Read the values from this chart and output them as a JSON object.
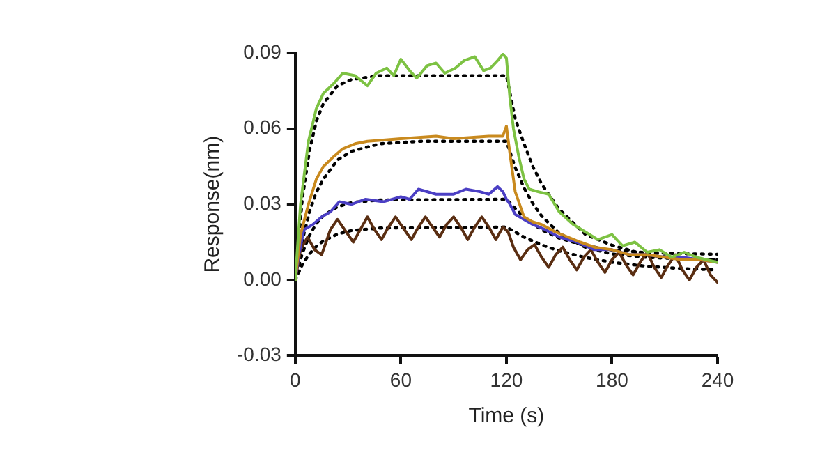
{
  "chart_data": {
    "type": "line",
    "xlabel": "Time (s)",
    "ylabel": "Response(nm)",
    "xlim": [
      0,
      240
    ],
    "xticks": [
      0,
      60,
      120,
      180,
      240
    ],
    "ylim": [
      -0.03,
      0.09
    ],
    "yticks": [
      -0.03,
      {
        "value": 0,
        "label": "0.00"
      },
      0.03,
      0.06,
      0.09
    ],
    "marker": "none",
    "series": [
      {
        "color": "#7dc243",
        "line_style": "solid",
        "x": [
          0,
          3,
          7.5,
          12,
          16,
          22,
          27,
          34,
          41,
          46,
          52,
          56,
          60,
          65,
          69,
          75,
          80,
          85,
          91,
          96,
          102,
          107,
          111,
          115,
          118,
          120,
          122,
          124,
          127,
          130,
          133,
          138,
          144,
          150,
          158,
          165,
          172,
          180,
          186,
          193,
          200,
          207,
          214,
          221,
          228,
          234,
          240
        ],
        "values": [
          0,
          0.03,
          0.055,
          0.068,
          0.074,
          0.078,
          0.082,
          0.081,
          0.077,
          0.082,
          0.084,
          0.081,
          0.0875,
          0.083,
          0.08,
          0.085,
          0.086,
          0.082,
          0.084,
          0.087,
          0.0885,
          0.083,
          0.084,
          0.087,
          0.0895,
          0.088,
          0.072,
          0.06,
          0.049,
          0.04,
          0.036,
          0.035,
          0.034,
          0.027,
          0.022,
          0.019,
          0.016,
          0.018,
          0.0135,
          0.015,
          0.011,
          0.012,
          0.009,
          0.011,
          0.009,
          0.008,
          0.007
        ]
      },
      {
        "color": "#c98a1e",
        "line_style": "solid",
        "x": [
          0,
          3,
          7.5,
          12,
          16,
          22,
          27,
          34,
          41,
          50,
          60,
          70,
          80,
          90,
          100,
          110,
          118,
          120,
          122,
          125,
          130,
          135,
          140,
          148,
          155,
          162,
          170,
          180,
          190,
          200,
          210,
          220,
          230,
          240
        ],
        "values": [
          0,
          0.018,
          0.03,
          0.04,
          0.045,
          0.049,
          0.052,
          0.054,
          0.055,
          0.0555,
          0.056,
          0.0565,
          0.057,
          0.056,
          0.0565,
          0.057,
          0.057,
          0.061,
          0.05,
          0.035,
          0.025,
          0.023,
          0.022,
          0.019,
          0.017,
          0.015,
          0.013,
          0.012,
          0.01,
          0.01,
          0.009,
          0.008,
          0.008,
          0.007
        ]
      },
      {
        "color": "#4b3fc4",
        "line_style": "solid",
        "x": [
          0,
          2,
          5,
          10,
          15,
          20,
          25,
          32,
          40,
          50,
          60,
          65,
          70,
          80,
          90,
          97,
          105,
          110,
          115,
          118,
          120,
          122,
          125,
          130,
          135,
          142,
          150,
          160,
          170,
          180,
          190,
          200,
          210,
          220,
          230,
          240
        ],
        "values": [
          0,
          0.01,
          0.02,
          0.022,
          0.025,
          0.027,
          0.031,
          0.03,
          0.032,
          0.031,
          0.033,
          0.032,
          0.036,
          0.034,
          0.034,
          0.036,
          0.035,
          0.034,
          0.037,
          0.035,
          0.032,
          0.03,
          0.026,
          0.024,
          0.022,
          0.02,
          0.017,
          0.015,
          0.012,
          0.012,
          0.01,
          0.01,
          0.009,
          0.009,
          0.008,
          0.007
        ]
      },
      {
        "color": "#5a2e12",
        "line_style": "solid",
        "x": [
          0,
          3,
          7,
          11,
          15,
          20,
          24,
          28,
          33,
          37,
          41,
          45,
          49,
          53,
          57,
          61,
          66,
          70,
          74,
          78,
          82,
          86,
          90,
          94,
          98,
          102,
          106,
          110,
          114,
          118,
          121,
          124,
          128,
          132,
          136,
          140,
          144,
          148,
          152,
          156,
          160,
          164,
          168,
          172,
          176,
          180,
          184,
          188,
          192,
          196,
          200,
          204,
          208,
          212,
          216,
          220,
          224,
          228,
          232,
          236,
          240
        ],
        "values": [
          0,
          0.012,
          0.017,
          0.012,
          0.01,
          0.02,
          0.024,
          0.02,
          0.015,
          0.02,
          0.025,
          0.02,
          0.016,
          0.021,
          0.025,
          0.021,
          0.016,
          0.021,
          0.025,
          0.021,
          0.017,
          0.022,
          0.025,
          0.021,
          0.016,
          0.021,
          0.025,
          0.021,
          0.016,
          0.021,
          0.019,
          0.013,
          0.008,
          0.012,
          0.014,
          0.009,
          0.005,
          0.01,
          0.013,
          0.008,
          0.004,
          0.009,
          0.012,
          0.007,
          0.003,
          0.008,
          0.011,
          0.006,
          0.002,
          0.007,
          0.011,
          0.005,
          0.001,
          0.006,
          0.01,
          0.004,
          0.0,
          0.005,
          0.008,
          0.002,
          -0.001
        ]
      },
      {
        "color": "#000000",
        "line_style": "dotted",
        "x": [
          0,
          4,
          8,
          12,
          16,
          24,
          32,
          48,
          120,
          125,
          130,
          135,
          140,
          150,
          165,
          180,
          200,
          220,
          240
        ],
        "values": [
          0,
          0.032,
          0.051,
          0.063,
          0.07,
          0.077,
          0.0795,
          0.081,
          0.081,
          0.064,
          0.054,
          0.045,
          0.038,
          0.028,
          0.018,
          0.0138,
          0.0098,
          0.0085,
          0.008
        ]
      },
      {
        "color": "#000000",
        "line_style": "dotted",
        "x": [
          0,
          4,
          8,
          12,
          16,
          24,
          32,
          48,
          72,
          120,
          125,
          130,
          135,
          140,
          150,
          165,
          180,
          200,
          240
        ],
        "values": [
          0,
          0.0156,
          0.0268,
          0.0348,
          0.04,
          0.0476,
          0.051,
          0.054,
          0.055,
          0.055,
          0.0446,
          0.0365,
          0.0303,
          0.0254,
          0.0185,
          0.0129,
          0.0103,
          0.0089,
          0.008
        ]
      },
      {
        "color": "#000000",
        "line_style": "dotted",
        "x": [
          0,
          4,
          8,
          12,
          16,
          24,
          32,
          48,
          120,
          130,
          140,
          150,
          165,
          180,
          200,
          220,
          240
        ],
        "values": [
          0,
          0.0105,
          0.0176,
          0.0224,
          0.0255,
          0.029,
          0.0307,
          0.0317,
          0.032,
          0.0248,
          0.0199,
          0.0166,
          0.0136,
          0.0119,
          0.0108,
          0.0104,
          0.0102
        ]
      },
      {
        "color": "#000000",
        "line_style": "dotted",
        "x": [
          0,
          4,
          8,
          12,
          16,
          24,
          32,
          48,
          120,
          130,
          140,
          150,
          165,
          180,
          200,
          220,
          240
        ],
        "values": [
          0,
          0.006,
          0.0103,
          0.0133,
          0.0155,
          0.0182,
          0.0196,
          0.0206,
          0.021,
          0.017,
          0.0139,
          0.0115,
          0.0089,
          0.007,
          0.0054,
          0.0045,
          0.004
        ]
      }
    ]
  }
}
